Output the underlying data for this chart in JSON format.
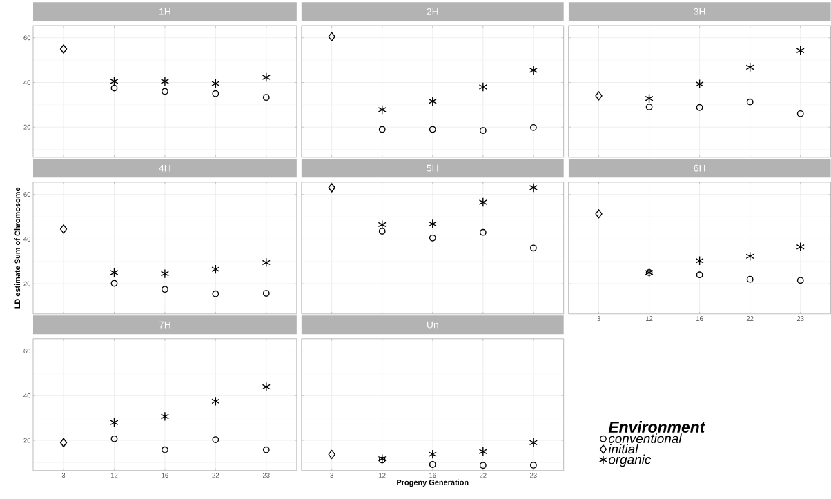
{
  "chart_data": [
    {
      "type": "scatter",
      "title": "1H",
      "categories": [
        "3",
        "12",
        "16",
        "22",
        "23"
      ],
      "ylim": [
        6.5,
        65.5
      ],
      "yticks": [
        20,
        40,
        60
      ],
      "grid": true,
      "tick_labels": "y",
      "series": [
        {
          "color": "#000000",
          "marker": "circle",
          "values": [
            null,
            37.5,
            36,
            35,
            33.3
          ]
        },
        {
          "color": "#000000",
          "marker": "diamond",
          "values": [
            55,
            null,
            null,
            null,
            null
          ]
        },
        {
          "color": "#000000",
          "marker": "cross",
          "values": [
            null,
            40.5,
            40.5,
            39.5,
            42.3
          ]
        }
      ]
    },
    {
      "type": "scatter",
      "title": "2H",
      "categories": [
        "3",
        "12",
        "16",
        "22",
        "23"
      ],
      "ylim": [
        6.5,
        65.5
      ],
      "yticks": [
        20,
        40,
        60
      ],
      "grid": true,
      "tick_labels": false,
      "series": [
        {
          "color": "#000000",
          "marker": "circle",
          "values": [
            null,
            19,
            19,
            18.5,
            19.8
          ]
        },
        {
          "color": "#000000",
          "marker": "diamond",
          "values": [
            60.5,
            null,
            null,
            null,
            null
          ]
        },
        {
          "color": "#000000",
          "marker": "cross",
          "values": [
            null,
            27.8,
            31.6,
            38,
            45.5
          ]
        }
      ]
    },
    {
      "type": "scatter",
      "title": "3H",
      "categories": [
        "3",
        "12",
        "16",
        "22",
        "23"
      ],
      "ylim": [
        6.5,
        65.5
      ],
      "yticks": [
        20,
        40,
        60
      ],
      "grid": true,
      "tick_labels": false,
      "series": [
        {
          "color": "#000000",
          "marker": "circle",
          "values": [
            null,
            29,
            28.8,
            31.3,
            26
          ]
        },
        {
          "color": "#000000",
          "marker": "diamond",
          "values": [
            34,
            null,
            null,
            null,
            null
          ]
        },
        {
          "color": "#000000",
          "marker": "cross",
          "values": [
            null,
            32.8,
            39.3,
            46.8,
            54.3
          ]
        }
      ]
    },
    {
      "type": "scatter",
      "title": "4H",
      "ylabel": "LD estimate Sum of Chromosome",
      "categories": [
        "3",
        "12",
        "16",
        "22",
        "23"
      ],
      "ylim": [
        6.5,
        65.5
      ],
      "yticks": [
        20,
        40,
        60
      ],
      "grid": true,
      "tick_labels": "y",
      "series": [
        {
          "color": "#000000",
          "marker": "circle",
          "values": [
            null,
            20.2,
            17.5,
            15.5,
            15.7
          ]
        },
        {
          "color": "#000000",
          "marker": "diamond",
          "values": [
            44.5,
            null,
            null,
            null,
            null
          ]
        },
        {
          "color": "#000000",
          "marker": "cross",
          "values": [
            null,
            25,
            24.5,
            26.5,
            29.5
          ]
        }
      ]
    },
    {
      "type": "scatter",
      "title": "5H",
      "categories": [
        "3",
        "12",
        "16",
        "22",
        "23"
      ],
      "ylim": [
        6.5,
        65.5
      ],
      "yticks": [
        20,
        40,
        60
      ],
      "grid": true,
      "tick_labels": false,
      "series": [
        {
          "color": "#000000",
          "marker": "circle",
          "values": [
            null,
            43.5,
            40.5,
            43,
            36
          ]
        },
        {
          "color": "#000000",
          "marker": "diamond",
          "values": [
            63,
            null,
            null,
            null,
            null
          ]
        },
        {
          "color": "#000000",
          "marker": "cross",
          "values": [
            null,
            46.5,
            46.8,
            56.5,
            63
          ]
        }
      ]
    },
    {
      "type": "scatter",
      "title": "6H",
      "categories": [
        "3",
        "12",
        "16",
        "22",
        "23"
      ],
      "ylim": [
        6.5,
        65.5
      ],
      "yticks": [
        20,
        40,
        60
      ],
      "grid": true,
      "tick_labels": "x",
      "series": [
        {
          "color": "#000000",
          "marker": "circle",
          "values": [
            null,
            25,
            24,
            22,
            21.5
          ]
        },
        {
          "color": "#000000",
          "marker": "diamond",
          "values": [
            51.3,
            null,
            null,
            null,
            null
          ]
        },
        {
          "color": "#000000",
          "marker": "cross",
          "values": [
            null,
            25,
            30.3,
            32.3,
            36.5
          ]
        }
      ]
    },
    {
      "type": "scatter",
      "title": "7H",
      "categories": [
        "3",
        "12",
        "16",
        "22",
        "23"
      ],
      "ylim": [
        6.5,
        65.5
      ],
      "yticks": [
        20,
        40,
        60
      ],
      "grid": true,
      "series": [
        {
          "color": "#000000",
          "marker": "circle",
          "values": [
            null,
            20.7,
            15.8,
            20.3,
            15.8
          ]
        },
        {
          "color": "#000000",
          "marker": "diamond",
          "values": [
            19,
            null,
            null,
            null,
            null
          ]
        },
        {
          "color": "#000000",
          "marker": "cross",
          "values": [
            null,
            28,
            30.7,
            37.5,
            44
          ]
        }
      ]
    },
    {
      "type": "scatter",
      "title": "Un",
      "xlabel": "Progeny Generation",
      "legend_title": "Environment",
      "legend": "right",
      "categories": [
        "3",
        "12",
        "16",
        "22",
        "23"
      ],
      "ylim": [
        6.5,
        65.5
      ],
      "yticks": [
        20,
        40,
        60
      ],
      "grid": true,
      "tick_labels": "x",
      "series": [
        {
          "name": "conventional",
          "color": "#000000",
          "marker": "circle",
          "values": [
            null,
            11.2,
            9.2,
            8.8,
            8.9
          ]
        },
        {
          "name": "initial",
          "color": "#000000",
          "marker": "diamond",
          "values": [
            13.7,
            null,
            null,
            null,
            null
          ]
        },
        {
          "name": "organic",
          "color": "#000000",
          "marker": "cross",
          "values": [
            null,
            11.8,
            13.8,
            15,
            19
          ]
        }
      ]
    }
  ]
}
